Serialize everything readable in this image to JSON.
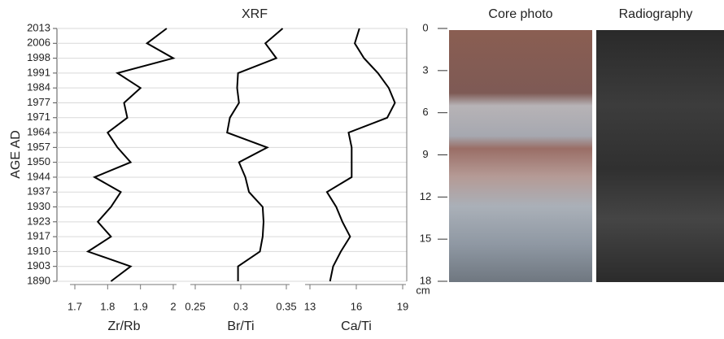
{
  "chart_data": {
    "type": "line",
    "title": "XRF",
    "ylabel": "AGE AD",
    "categories": [
      "2013",
      "2006",
      "1998",
      "1991",
      "1984",
      "1977",
      "1971",
      "1964",
      "1957",
      "1950",
      "1944",
      "1937",
      "1930",
      "1923",
      "1917",
      "1910",
      "1903",
      "1890"
    ],
    "panels": [
      {
        "xlabel": "Zr/Rb",
        "color": "#000000",
        "xlim": [
          1.7,
          2.0
        ],
        "xticks": [
          1.7,
          1.8,
          1.9,
          2
        ],
        "values": [
          1.98,
          1.92,
          2.0,
          1.83,
          1.9,
          1.85,
          1.86,
          1.8,
          1.83,
          1.87,
          1.76,
          1.84,
          1.81,
          1.77,
          1.81,
          1.74,
          1.87,
          1.81
        ]
      },
      {
        "xlabel": "Br/Ti",
        "color": "#000000",
        "xlim": [
          0.25,
          0.35
        ],
        "xticks": [
          0.25,
          0.3,
          0.35
        ],
        "values": [
          0.346,
          0.327,
          0.339,
          0.297,
          0.296,
          0.298,
          0.288,
          0.285,
          0.329,
          0.298,
          0.305,
          0.309,
          0.324,
          0.325,
          0.324,
          0.321,
          0.297,
          0.297
        ]
      },
      {
        "xlabel": "Ca/Ti",
        "color": "#000000",
        "xlim": [
          13,
          19
        ],
        "xticks": [
          13,
          16,
          19
        ],
        "values": [
          16.2,
          15.9,
          16.5,
          17.4,
          18.1,
          18.5,
          18.0,
          15.5,
          15.7,
          15.7,
          15.7,
          14.1,
          14.7,
          15.1,
          15.6,
          15.0,
          14.5,
          14.3
        ]
      }
    ],
    "y2label": "cm",
    "y2lim": [
      0,
      18
    ],
    "y2ticks": [
      0,
      3,
      6,
      9,
      12,
      15,
      18
    ]
  },
  "photos": [
    {
      "title": "Core photo"
    },
    {
      "title": "Radiography"
    }
  ]
}
